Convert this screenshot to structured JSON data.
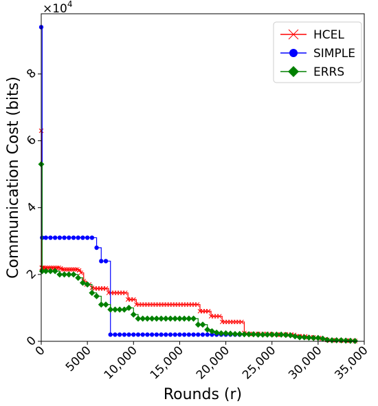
{
  "chart_data": {
    "type": "line",
    "xlabel": "Rounds (r)",
    "ylabel": "Communication Cost (bits)",
    "y_multiplier_base": "×10",
    "y_multiplier_exp": "4",
    "xlim": [
      0,
      35000
    ],
    "ylim": [
      0,
      98000
    ],
    "x_ticks": [
      {
        "value": 0,
        "label": "0"
      },
      {
        "value": 5000,
        "label": "5000"
      },
      {
        "value": 10000,
        "label": "10,000"
      },
      {
        "value": 15000,
        "label": "15,000"
      },
      {
        "value": 20000,
        "label": "20,000"
      },
      {
        "value": 25000,
        "label": "25,000"
      },
      {
        "value": 30000,
        "label": "30,000"
      },
      {
        "value": 35000,
        "label": "35,000"
      }
    ],
    "y_ticks": [
      {
        "value": 0,
        "label": "0"
      },
      {
        "value": 20000,
        "label": "2"
      },
      {
        "value": 40000,
        "label": "4"
      },
      {
        "value": 60000,
        "label": "6"
      },
      {
        "value": 80000,
        "label": "8"
      }
    ],
    "grid": false,
    "legend_position": "top-right",
    "series": [
      {
        "name": "HCEL",
        "color": "#ff0000",
        "marker": "x",
        "x": [
          0,
          50,
          150,
          300,
          500,
          700,
          900,
          1100,
          1300,
          1500,
          1700,
          1900,
          2100,
          2300,
          2500,
          2700,
          2900,
          3100,
          3300,
          3500,
          3700,
          3900,
          4100,
          4300,
          4600,
          4900,
          5200,
          5500,
          5800,
          6100,
          6400,
          6700,
          7000,
          7300,
          7600,
          7900,
          8200,
          8500,
          8800,
          9100,
          9400,
          9700,
          10000,
          10300,
          10600,
          10900,
          11200,
          11500,
          11800,
          12100,
          12400,
          12700,
          13000,
          13300,
          13600,
          13900,
          14200,
          14500,
          14800,
          15100,
          15400,
          15700,
          16000,
          16300,
          16600,
          16900,
          17200,
          17500,
          17800,
          18100,
          18400,
          18700,
          19000,
          19300,
          19600,
          19900,
          20200,
          20500,
          20800,
          21100,
          21400,
          21700,
          22000,
          22300,
          22600,
          22900,
          23200,
          23500,
          23800,
          24100,
          24400,
          24700,
          25000,
          25300,
          25600,
          25900,
          26200,
          26500,
          26800,
          27100,
          27400,
          27700,
          28000,
          28300,
          28600,
          28900,
          29200,
          29500,
          29800,
          30100,
          30400,
          30700,
          31000,
          31300,
          31600,
          31900,
          32200,
          32500,
          32800,
          33100,
          33400,
          33700,
          34000
        ],
        "y": [
          63000,
          22000,
          22000,
          22000,
          22000,
          22000,
          22000,
          22000,
          22000,
          22000,
          22000,
          22000,
          21800,
          21500,
          21500,
          21500,
          21500,
          21500,
          21500,
          21500,
          21500,
          21500,
          21200,
          20500,
          18000,
          17000,
          17000,
          16000,
          15800,
          15800,
          15800,
          15800,
          15800,
          14500,
          14500,
          14500,
          14500,
          14500,
          14500,
          14500,
          12500,
          12500,
          12500,
          11000,
          11000,
          11000,
          11000,
          11000,
          11000,
          11000,
          11000,
          11000,
          11000,
          11000,
          11000,
          11000,
          11000,
          11000,
          11000,
          11000,
          11000,
          11000,
          11000,
          11000,
          11000,
          11000,
          9000,
          9000,
          9000,
          9000,
          7500,
          7500,
          7500,
          7500,
          5800,
          5800,
          5800,
          5800,
          5800,
          5800,
          5800,
          5800,
          2500,
          2200,
          2200,
          2200,
          2200,
          2200,
          2200,
          2200,
          2200,
          2200,
          2100,
          2000,
          2000,
          2000,
          2000,
          2000,
          2000,
          2000,
          1900,
          1500,
          1500,
          1500,
          1500,
          1200,
          1200,
          1200,
          1000,
          1000,
          800,
          600,
          400,
          300,
          300,
          300,
          300,
          200,
          200,
          200,
          200,
          150,
          100
        ]
      },
      {
        "name": "SIMPLE",
        "color": "#0000ff",
        "marker": "circle",
        "x": [
          0,
          100,
          500,
          1000,
          1500,
          2000,
          2500,
          3000,
          3500,
          4000,
          4500,
          5000,
          5500,
          6000,
          6500,
          7000,
          7500,
          8000,
          8500,
          9000,
          9500,
          10000,
          10500,
          11000,
          11500,
          12000,
          12500,
          13000,
          13500,
          14000,
          14500,
          15000,
          15500,
          16000,
          16500,
          17000,
          17500,
          18000,
          18500,
          19000,
          19500,
          20000,
          20500,
          21000,
          21500
        ],
        "y": [
          94000,
          31000,
          31000,
          31000,
          31000,
          31000,
          31000,
          31000,
          31000,
          31000,
          31000,
          31000,
          31000,
          28000,
          24000,
          24000,
          2000,
          2000,
          2000,
          2000,
          2000,
          2000,
          2000,
          2000,
          2000,
          2000,
          2000,
          2000,
          2000,
          2000,
          2000,
          2000,
          2000,
          2000,
          2000,
          2000,
          2000,
          2000,
          2000,
          2000,
          2000,
          2000,
          2000,
          2000,
          2000
        ]
      },
      {
        "name": "ERRS",
        "color": "#008000",
        "marker": "diamond",
        "x": [
          0,
          100,
          500,
          1000,
          1500,
          2000,
          2500,
          3000,
          3500,
          4000,
          4500,
          5000,
          5500,
          6000,
          6500,
          7000,
          7500,
          8000,
          8500,
          9000,
          9500,
          10000,
          10500,
          11000,
          11500,
          12000,
          12500,
          13000,
          13500,
          14000,
          14500,
          15000,
          15500,
          16000,
          16500,
          17000,
          17500,
          18000,
          18500,
          19000,
          19500,
          20000,
          20500,
          21000,
          21500,
          22000,
          22500,
          23000,
          23500,
          24000,
          24500,
          25000,
          25500,
          26000,
          26500,
          27000,
          27500,
          28000,
          28500,
          29000,
          29500,
          30000,
          30500,
          31000,
          31500,
          32000,
          32500,
          33000,
          33500,
          34000
        ],
        "y": [
          53000,
          21000,
          21000,
          21000,
          21000,
          20000,
          20000,
          20000,
          20000,
          19000,
          17500,
          17000,
          14500,
          13500,
          11000,
          11000,
          9500,
          9500,
          9500,
          9500,
          10000,
          8000,
          6800,
          6800,
          6800,
          6800,
          6800,
          6800,
          6800,
          6800,
          6800,
          6800,
          6800,
          6800,
          6800,
          5000,
          5000,
          3500,
          3000,
          2600,
          2400,
          2400,
          2300,
          2200,
          2200,
          2100,
          2100,
          2100,
          2000,
          2000,
          2000,
          2000,
          2000,
          2000,
          1900,
          1800,
          1500,
          1200,
          1200,
          1100,
          1000,
          1000,
          800,
          400,
          300,
          300,
          300,
          200,
          150,
          100
        ]
      }
    ]
  }
}
